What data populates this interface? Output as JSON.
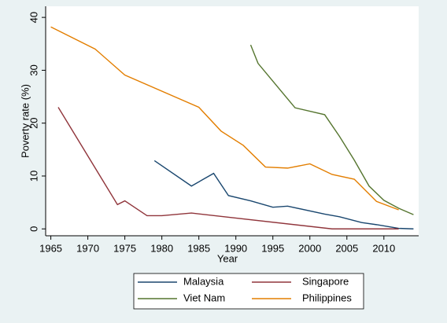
{
  "chart_data": {
    "type": "line",
    "xlabel": "Year",
    "ylabel": "Poverty rate (%)",
    "xlim": [
      1964.3,
      2014.7
    ],
    "ylim": [
      -1.3,
      42.1
    ],
    "xticks": [
      1965,
      1970,
      1975,
      1980,
      1985,
      1990,
      1995,
      2000,
      2005,
      2010
    ],
    "yticks": [
      0,
      10,
      20,
      30,
      40
    ],
    "grid": false,
    "legend": "bottom",
    "series": [
      {
        "name": "Malaysia",
        "color": "#1a476f",
        "x": [
          1979,
          1984,
          1987,
          1989,
          1992,
          1995,
          1997,
          2002,
          2004,
          2007,
          2009,
          2012,
          2014
        ],
        "values": [
          12.9,
          8.1,
          10.5,
          6.3,
          5.3,
          4.1,
          4.3,
          2.8,
          2.3,
          1.2,
          0.8,
          0.1,
          0.0
        ]
      },
      {
        "name": "Singapore",
        "color": "#90353b",
        "x": [
          1966,
          1974,
          1975,
          1978,
          1980,
          1984,
          2003,
          2012
        ],
        "values": [
          23.0,
          4.6,
          5.3,
          2.5,
          2.5,
          3.0,
          0.0,
          0.0
        ]
      },
      {
        "name": "Viet Nam",
        "color": "#55752f",
        "x": [
          1992,
          1993,
          1998,
          2002,
          2004,
          2006,
          2008,
          2010,
          2012,
          2014
        ],
        "values": [
          34.8,
          31.3,
          22.9,
          21.6,
          17.5,
          13.0,
          8.1,
          5.4,
          3.9,
          2.7
        ]
      },
      {
        "name": "Philippines",
        "color": "#e37e00",
        "x": [
          1965,
          1971,
          1975,
          1985,
          1988,
          1991,
          1994,
          1997,
          2000,
          2003,
          2006,
          2009,
          2012
        ],
        "values": [
          38.2,
          34.0,
          29.1,
          23.0,
          18.5,
          15.8,
          11.7,
          11.5,
          12.3,
          10.3,
          9.4,
          5.2,
          3.6
        ]
      }
    ]
  }
}
